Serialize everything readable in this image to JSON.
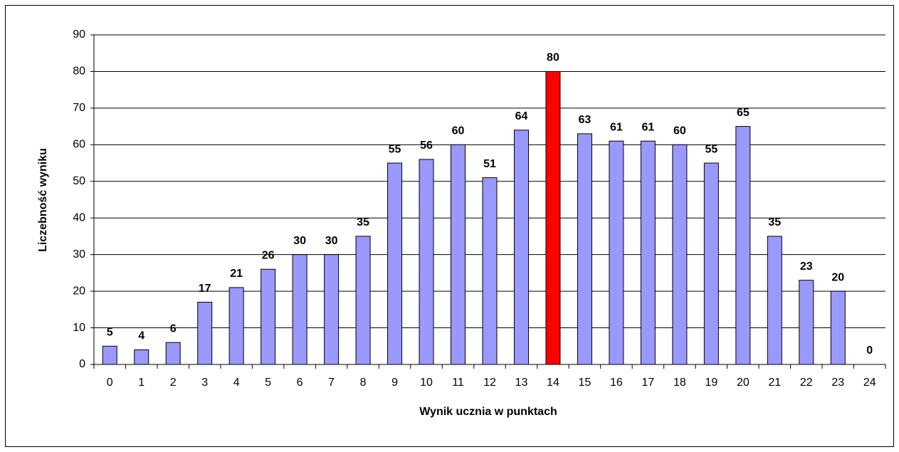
{
  "chart_data": {
    "type": "bar",
    "x_label": "Wynik ucznia w punktach",
    "y_label": "Liczebność wyniku",
    "categories": [
      "0",
      "1",
      "2",
      "3",
      "4",
      "5",
      "6",
      "7",
      "8",
      "9",
      "10",
      "11",
      "12",
      "13",
      "14",
      "15",
      "16",
      "17",
      "18",
      "19",
      "20",
      "21",
      "22",
      "23",
      "24"
    ],
    "values": [
      5,
      4,
      6,
      17,
      21,
      26,
      30,
      30,
      35,
      55,
      56,
      60,
      51,
      64,
      80,
      63,
      61,
      61,
      60,
      55,
      65,
      35,
      23,
      20,
      0
    ],
    "colors": [
      "#9999ff",
      "#9999ff",
      "#9999ff",
      "#9999ff",
      "#9999ff",
      "#9999ff",
      "#9999ff",
      "#9999ff",
      "#9999ff",
      "#9999ff",
      "#9999ff",
      "#9999ff",
      "#9999ff",
      "#9999ff",
      "#ff0000",
      "#9999ff",
      "#9999ff",
      "#9999ff",
      "#9999ff",
      "#9999ff",
      "#9999ff",
      "#9999ff",
      "#9999ff",
      "#9999ff",
      "#9999ff"
    ],
    "ylim": [
      0,
      90
    ],
    "yticks": [
      0,
      10,
      20,
      30,
      40,
      50,
      60,
      70,
      80,
      90
    ],
    "grid": true
  }
}
